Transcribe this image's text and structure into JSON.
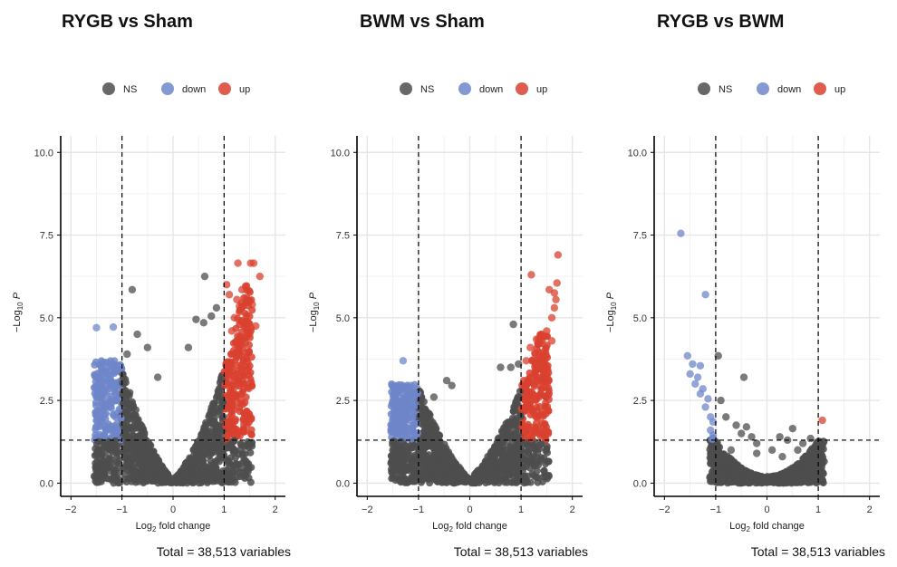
{
  "chart_data": [
    {
      "type": "scatter",
      "title": "RYGB  vs Sham",
      "xlabel_main": "Log",
      "xlabel_sub": "2",
      "xlabel_rest": " fold change",
      "ylabel_prefix": "−Log",
      "ylabel_sub": "10",
      "ylabel_rest": " P",
      "xticks": [
        "−2",
        "−1",
        "0",
        "1",
        "2"
      ],
      "yticks": [
        "0.0",
        "2.5",
        "5.0",
        "7.5",
        "10.0"
      ],
      "xlim": [
        -2.2,
        2.2
      ],
      "ylim": [
        -0.4,
        10.5
      ],
      "fc_cutoff": 1,
      "p_cutoff": 1.3,
      "legend": [
        "NS",
        "down",
        "up"
      ],
      "legend_position": "top",
      "colors": {
        "NS": "#4d4d4d",
        "down": "#6f86c9",
        "up": "#d9412f"
      },
      "caption": "Total = 38,513 variables",
      "points": {
        "NS": [
          [
            -0.8,
            5.85
          ],
          [
            0.62,
            6.25
          ],
          [
            -0.7,
            4.5
          ],
          [
            -0.5,
            4.1
          ],
          [
            0.45,
            4.95
          ],
          [
            0.6,
            4.85
          ],
          [
            -0.9,
            3.9
          ],
          [
            0.85,
            5.3
          ],
          [
            0.3,
            4.1
          ],
          [
            -0.3,
            3.2
          ],
          [
            0.75,
            5.05
          ]
        ],
        "down": [
          [
            -1.5,
            4.7
          ],
          [
            -1.17,
            4.72
          ],
          [
            -1.32,
            3.65
          ],
          [
            -1.28,
            3.4
          ],
          [
            -1.25,
            3.1
          ],
          [
            -1.18,
            2.9
          ],
          [
            -1.12,
            2.7
          ],
          [
            -1.08,
            3.5
          ],
          [
            -1.3,
            3.3
          ],
          [
            -1.22,
            3.55
          ]
        ],
        "up": [
          [
            1.27,
            6.65
          ],
          [
            1.52,
            6.65
          ],
          [
            1.58,
            6.65
          ],
          [
            1.7,
            6.25
          ],
          [
            1.42,
            5.95
          ],
          [
            1.05,
            6.0
          ],
          [
            1.1,
            5.7
          ],
          [
            1.25,
            5.55
          ],
          [
            1.35,
            5.85
          ],
          [
            1.55,
            5.4
          ],
          [
            1.3,
            5.35
          ],
          [
            1.2,
            5.0
          ],
          [
            1.42,
            4.85
          ],
          [
            1.62,
            4.75
          ],
          [
            1.15,
            4.6
          ],
          [
            1.5,
            4.5
          ]
        ]
      }
    },
    {
      "type": "scatter",
      "title": "BWM vs Sham",
      "xlabel_main": "Log",
      "xlabel_sub": "2",
      "xlabel_rest": " fold change",
      "ylabel_prefix": "−Log",
      "ylabel_sub": "10",
      "ylabel_rest": " P",
      "xticks": [
        "−2",
        "−1",
        "0",
        "1",
        "2"
      ],
      "yticks": [
        "0.0",
        "2.5",
        "5.0",
        "7.5",
        "10.0"
      ],
      "xlim": [
        -2.2,
        2.2
      ],
      "ylim": [
        -0.4,
        10.5
      ],
      "fc_cutoff": 1,
      "p_cutoff": 1.3,
      "legend": [
        "NS",
        "down",
        "up"
      ],
      "legend_position": "top",
      "colors": {
        "NS": "#4d4d4d",
        "down": "#6f86c9",
        "up": "#d9412f"
      },
      "caption": "Total = 38,513 variables",
      "points": {
        "NS": [
          [
            0.85,
            4.8
          ],
          [
            0.6,
            3.5
          ],
          [
            -0.45,
            3.1
          ],
          [
            -0.35,
            2.95
          ],
          [
            0.95,
            3.6
          ],
          [
            -0.7,
            2.6
          ],
          [
            0.8,
            3.5
          ]
        ],
        "down": [
          [
            -1.3,
            3.7
          ],
          [
            -1.15,
            2.95
          ],
          [
            -1.2,
            2.75
          ],
          [
            -1.1,
            2.5
          ],
          [
            -1.05,
            2.35
          ]
        ],
        "up": [
          [
            1.72,
            6.9
          ],
          [
            1.2,
            6.3
          ],
          [
            1.7,
            6.05
          ],
          [
            1.55,
            5.85
          ],
          [
            1.65,
            5.75
          ],
          [
            1.68,
            5.55
          ],
          [
            1.65,
            5.3
          ],
          [
            1.6,
            5.0
          ],
          [
            1.5,
            4.6
          ],
          [
            1.4,
            4.5
          ],
          [
            1.3,
            4.35
          ],
          [
            1.6,
            4.3
          ],
          [
            1.18,
            4.1
          ],
          [
            1.28,
            3.9
          ],
          [
            1.48,
            3.85
          ],
          [
            1.1,
            3.7
          ],
          [
            1.35,
            3.65
          ]
        ]
      }
    },
    {
      "type": "scatter",
      "title": "RYGB vs BWM",
      "xlabel_main": "Log",
      "xlabel_sub": "2",
      "xlabel_rest": " fold change",
      "ylabel_prefix": "−Log",
      "ylabel_sub": "10",
      "ylabel_rest": " P",
      "xticks": [
        "−2",
        "−1",
        "0",
        "1",
        "2"
      ],
      "yticks": [
        "0.0",
        "2.5",
        "5.0",
        "7.5",
        "10.0"
      ],
      "xlim": [
        -2.2,
        2.2
      ],
      "ylim": [
        -0.4,
        10.5
      ],
      "fc_cutoff": 1,
      "p_cutoff": 1.3,
      "legend": [
        "NS",
        "down",
        "up"
      ],
      "legend_position": "top",
      "colors": {
        "NS": "#4d4d4d",
        "down": "#6f86c9",
        "up": "#d9412f"
      },
      "caption": "Total = 38,513 variables",
      "points": {
        "NS": [
          [
            -0.95,
            3.85
          ],
          [
            -0.45,
            3.2
          ],
          [
            -0.9,
            2.5
          ],
          [
            -0.8,
            2.0
          ],
          [
            -0.6,
            1.75
          ],
          [
            -0.4,
            1.7
          ],
          [
            -0.5,
            1.5
          ],
          [
            -0.3,
            1.4
          ],
          [
            0.5,
            1.65
          ],
          [
            0.25,
            1.4
          ],
          [
            0.4,
            1.3
          ],
          [
            0.7,
            1.2
          ],
          [
            0.85,
            1.35
          ],
          [
            0.95,
            1.15
          ],
          [
            0.6,
            1.0
          ],
          [
            -0.2,
            1.2
          ],
          [
            0.1,
            1.0
          ],
          [
            0.3,
            0.8
          ],
          [
            -0.7,
            1.0
          ],
          [
            -0.2,
            0.9
          ]
        ],
        "down": [
          [
            -1.68,
            7.55
          ],
          [
            -1.2,
            5.7
          ],
          [
            -1.55,
            3.85
          ],
          [
            -1.45,
            3.6
          ],
          [
            -1.3,
            3.55
          ],
          [
            -1.5,
            3.3
          ],
          [
            -1.35,
            3.2
          ],
          [
            -1.4,
            3.0
          ],
          [
            -1.25,
            2.85
          ],
          [
            -1.3,
            2.7
          ],
          [
            -1.15,
            2.55
          ],
          [
            -1.2,
            2.3
          ],
          [
            -1.1,
            2.0
          ],
          [
            -1.05,
            1.85
          ],
          [
            -1.1,
            1.6
          ],
          [
            -1.05,
            1.45
          ]
        ],
        "up": [
          [
            1.08,
            1.9
          ]
        ]
      }
    }
  ]
}
